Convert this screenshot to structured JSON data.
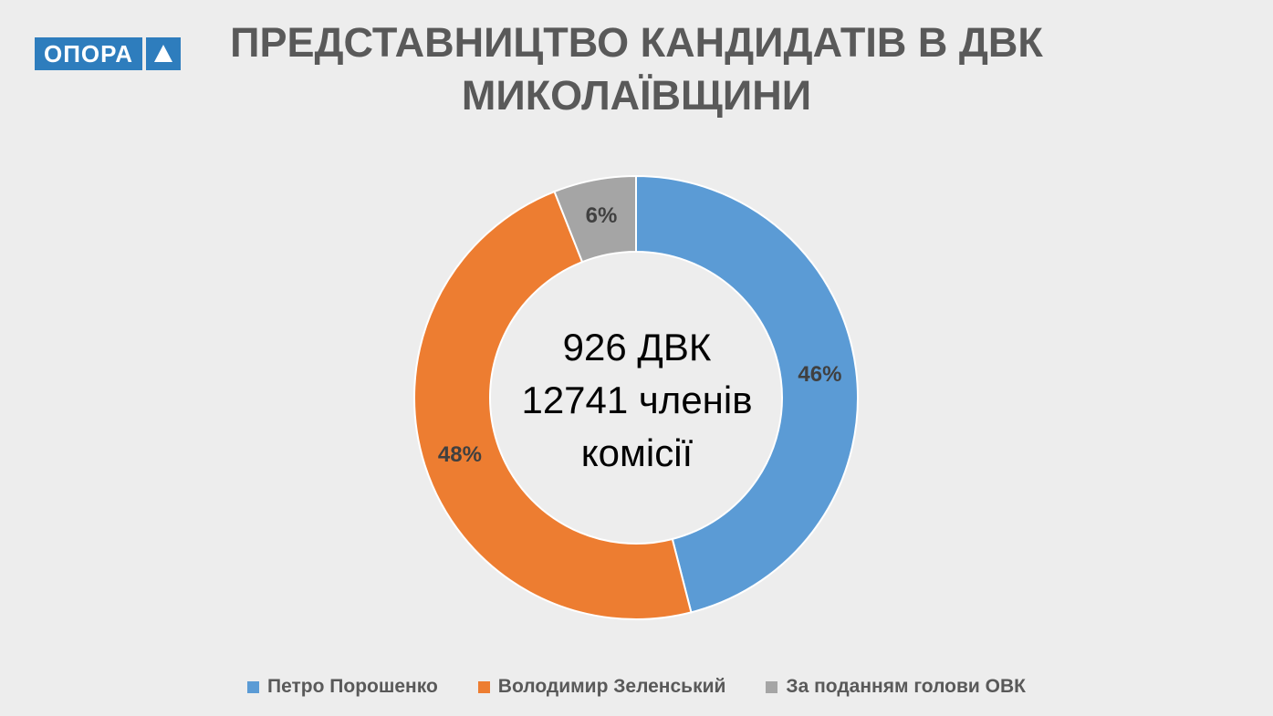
{
  "logo": {
    "text": "ОПОРА"
  },
  "chart_data": {
    "type": "pie",
    "variant": "donut",
    "title": [
      "ПРЕДСТАВНИЦТВО КАНДИДАТІВ В ДВК",
      "МИКОЛАЇВЩИНИ"
    ],
    "center_text": [
      "926 ДВК",
      "12741 членів",
      "комісії"
    ],
    "legend_position": "bottom",
    "slices": [
      {
        "name": "Петро Порошенко",
        "value": 46,
        "label": "46%",
        "color": "#5b9bd5"
      },
      {
        "name": "Володимир Зеленський",
        "value": 48,
        "label": "48%",
        "color": "#ed7d31"
      },
      {
        "name": "За поданням голови ОВК",
        "value": 6,
        "label": "6%",
        "color": "#a5a5a5"
      }
    ]
  }
}
